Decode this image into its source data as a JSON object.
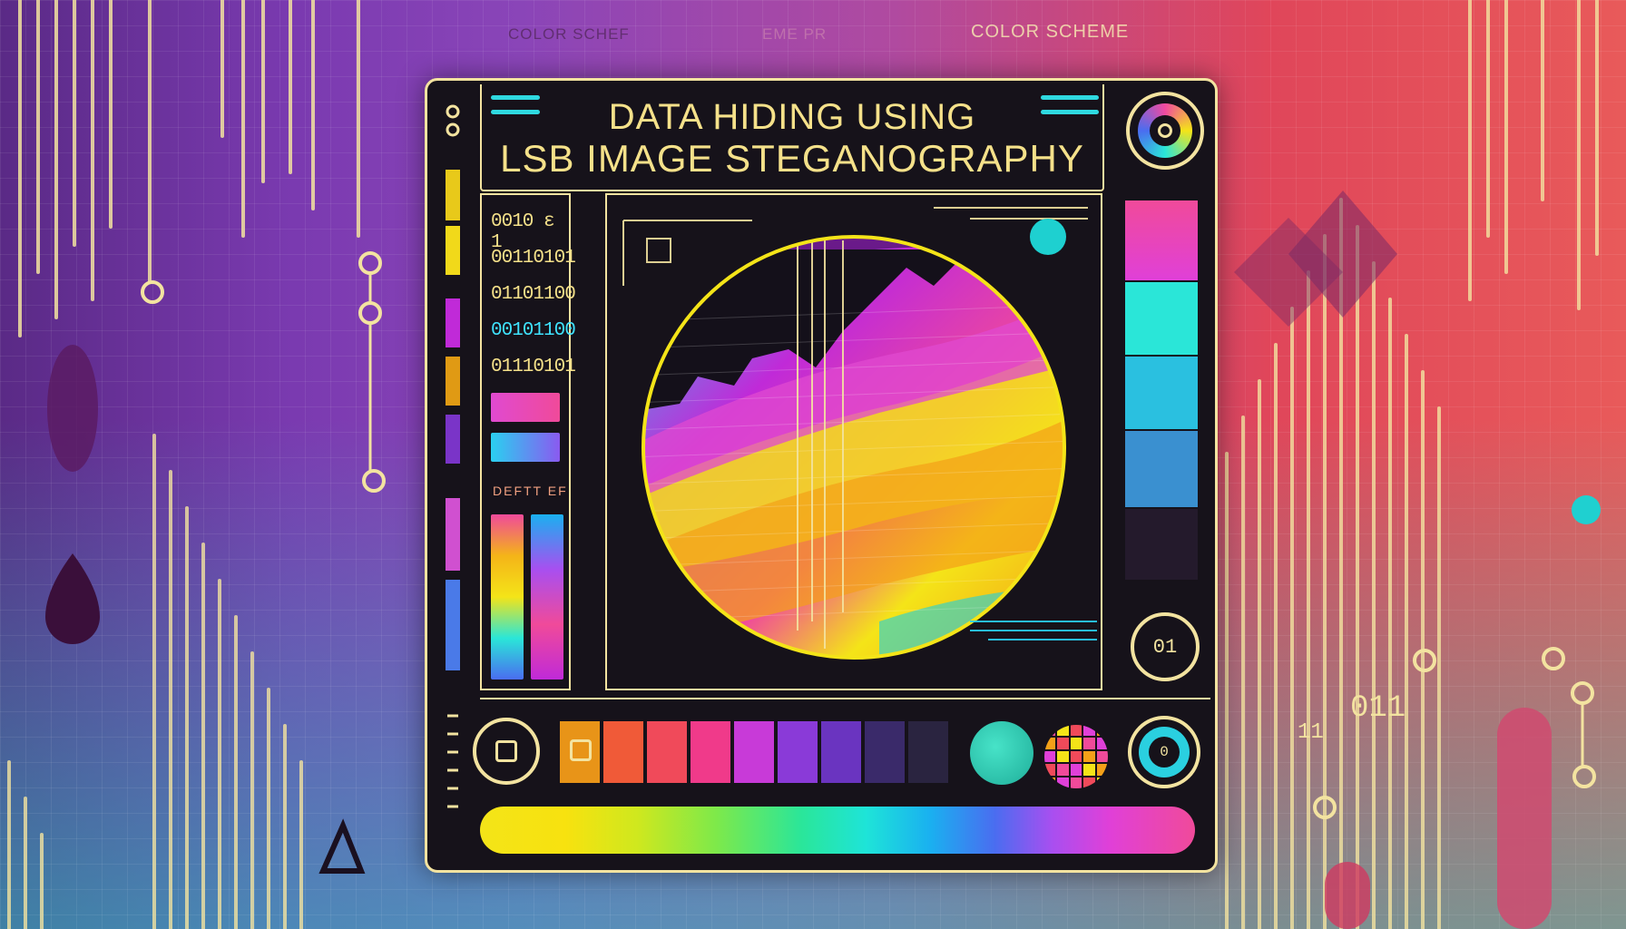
{
  "header": {
    "left_label": "COLOR SCHEF",
    "center_label": "EME PR",
    "right_label": "COLOR SCHEME"
  },
  "title": {
    "line1": "DATA  HIDING USING",
    "line2": "LSB IMAGE STEGANOGRAPHY"
  },
  "binary_panel": {
    "rows": [
      "0010 ε 1",
      "00110101",
      "01101100",
      "00101100",
      "01110101"
    ],
    "label": "DEFTT EF"
  },
  "controls": {
    "bottom_right_knob_text": "01",
    "right_lower_knob_text": "0"
  },
  "background_text": {
    "right_digits": "011",
    "right_small_digits": "11"
  },
  "colors": {
    "frame": "#f3e3a0",
    "title": "#f5e18a",
    "accent_cyan": "#2fd9e0",
    "panel_bg": "#16121a"
  },
  "icons": {
    "top_right": "target-ring-icon",
    "bottom_left": "square-button-icon",
    "bottom_right": "ring-button-icon",
    "pixel": "pixel-grid-icon",
    "triangle": "triangle-icon"
  }
}
